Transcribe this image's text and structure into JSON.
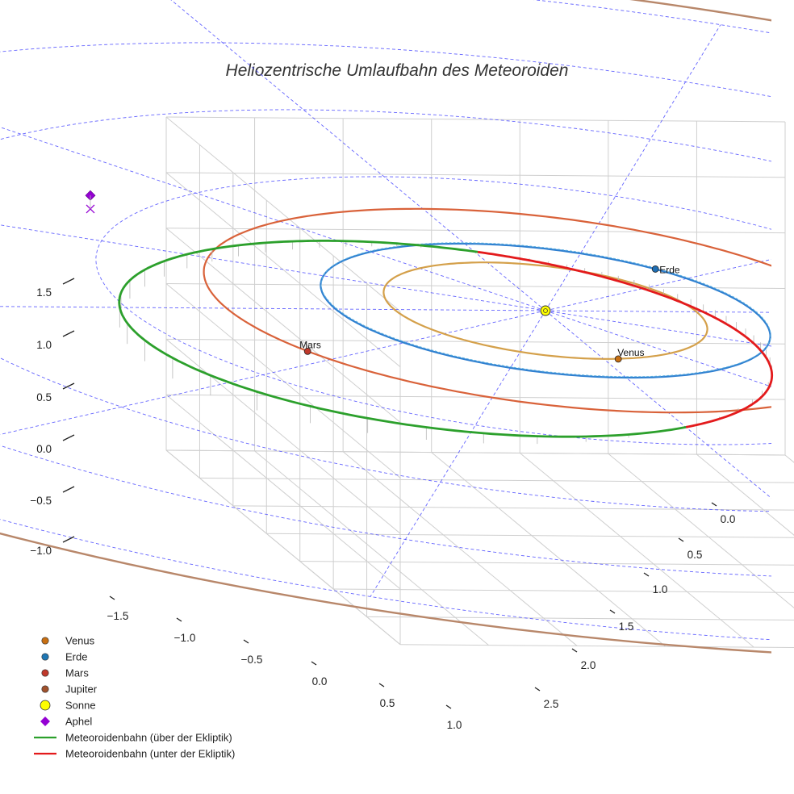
{
  "chart_data": {
    "type": "3d-orbit",
    "title": "Heliozentrische Umlaufbahn des Meteoroiden",
    "xlim": [
      -1.75,
      1.2
    ],
    "ylim": [
      -0.15,
      2.75
    ],
    "zlim": [
      -1.35,
      1.6
    ],
    "x_ticks": [
      "−1.5",
      "−1.0",
      "−0.5",
      "0.0",
      "0.5",
      "1.0"
    ],
    "y_ticks": [
      "0.0",
      "0.5",
      "1.0",
      "1.5",
      "2.0",
      "2.5"
    ],
    "z_ticks": [
      "1.5",
      "1.0",
      "0.5",
      "0.0",
      "−0.5",
      "−1.0"
    ],
    "grid": true,
    "reference_grid": {
      "rings": [
        1,
        2,
        3,
        4,
        5
      ],
      "spokes": 12,
      "color": "#4a4aff"
    },
    "orbits": [
      {
        "name": "Venus",
        "a": 0.72,
        "color": "#d4a04a"
      },
      {
        "name": "Erde",
        "a": 1.0,
        "color": "#2f7fd0"
      },
      {
        "name": "Mars",
        "a": 1.52,
        "color": "#d9623a"
      },
      {
        "name": "Jupiter",
        "a": 5.2,
        "color": "#b8876a"
      }
    ],
    "planets": [
      {
        "name": "Venus",
        "label": "Venus",
        "x": 0.07,
        "y": 0.72,
        "z": 0,
        "color": "#c86f12"
      },
      {
        "name": "Erde",
        "label": "Erde",
        "x": 0.77,
        "y": -0.64,
        "z": 0,
        "color": "#1f6fb4"
      },
      {
        "name": "Mars",
        "label": "Mars",
        "x": -1.38,
        "y": 0.64,
        "z": 0,
        "color": "#c0392b"
      }
    ],
    "sun": {
      "name": "Sonne",
      "x": 0,
      "y": 0,
      "z": 0,
      "color": "#ffff00"
    },
    "meteoroid_orbit": {
      "a": 1.63,
      "e": 0.53,
      "inclination_deg": 4,
      "perihelion_dir_deg": -38
    },
    "aphel": {
      "label": "Aphel",
      "x": -1.6,
      "y": -1.48,
      "z": 0.12,
      "color": "#9400d3"
    },
    "legend": {
      "position": "bottom-left",
      "entries": [
        {
          "label": "Venus",
          "kind": "dot",
          "color": "#c86f12"
        },
        {
          "label": "Erde",
          "kind": "dot",
          "color": "#1f77b4"
        },
        {
          "label": "Mars",
          "kind": "dot",
          "color": "#c0392b"
        },
        {
          "label": "Jupiter",
          "kind": "dot",
          "color": "#a0522d"
        },
        {
          "label": "Sonne",
          "kind": "sun",
          "color": "#ffff00"
        },
        {
          "label": "Aphel",
          "kind": "diamond",
          "color": "#9400d3"
        },
        {
          "label": "Meteoroidenbahn (über der Ekliptik)",
          "kind": "line",
          "color": "#2ca02c"
        },
        {
          "label": "Meteoroidenbahn (unter der Ekliptik)",
          "kind": "line",
          "color": "#e31a1c"
        }
      ]
    }
  }
}
